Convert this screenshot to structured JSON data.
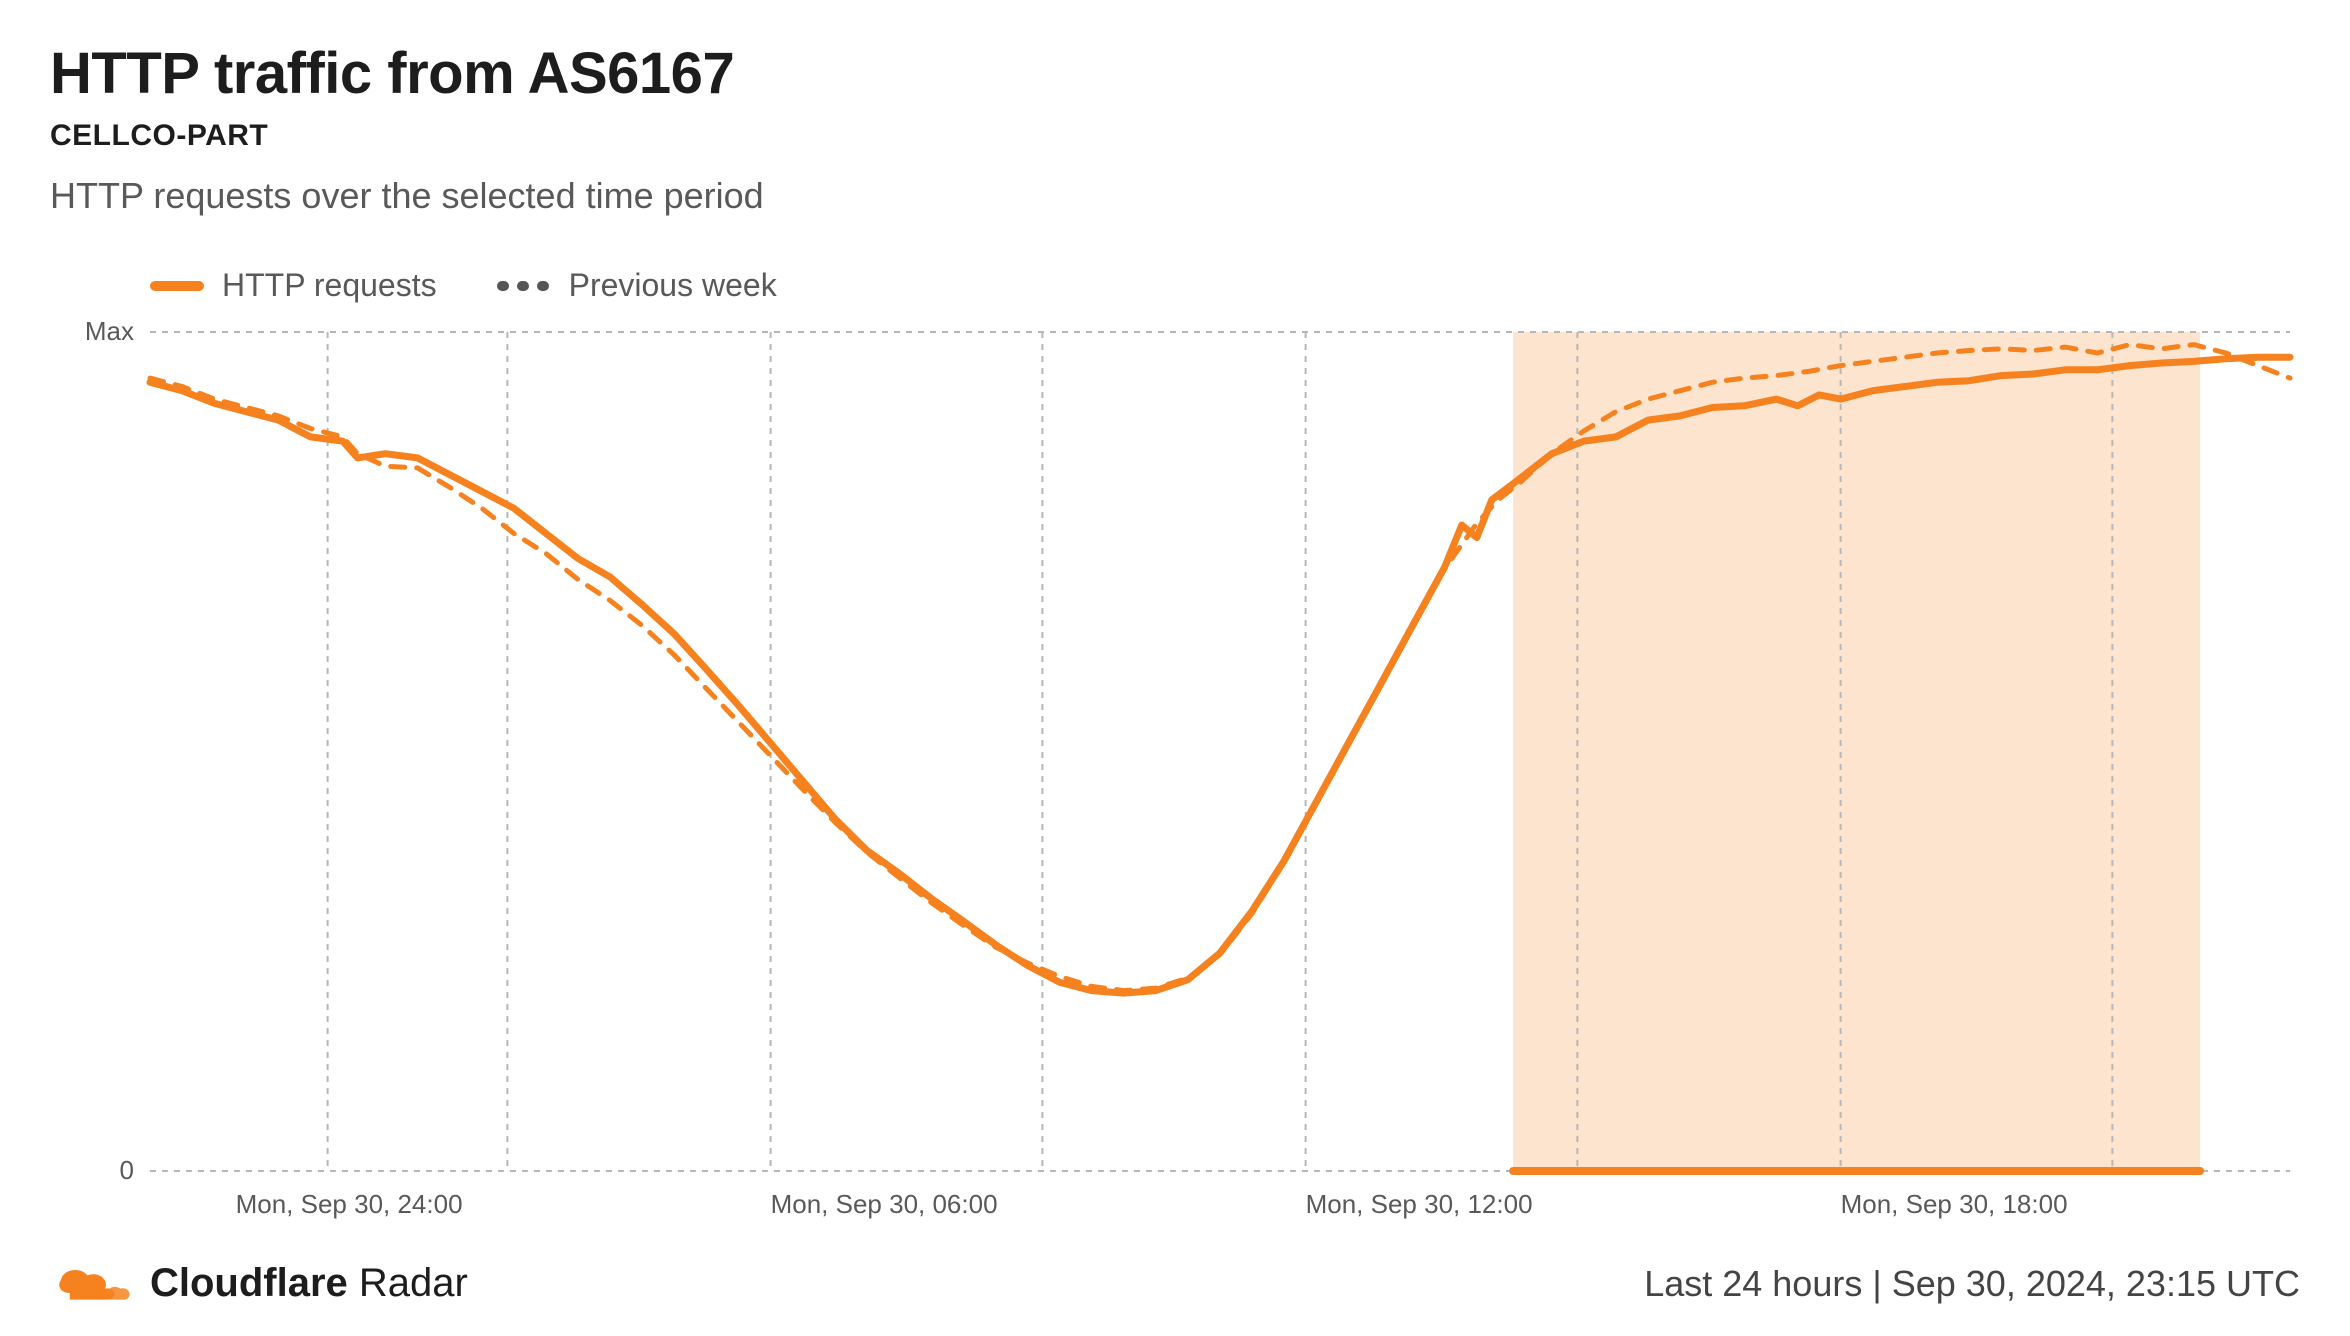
{
  "header": {
    "title": "HTTP traffic from AS6167",
    "subtitle": "CELLCO-PART",
    "description": "HTTP requests over the selected time period"
  },
  "legend": {
    "series1_label": "HTTP requests",
    "series2_label": "Previous week",
    "series1_color": "#f6821f",
    "series2_color": "#555555"
  },
  "chart": {
    "type": "line",
    "background_color": "#ffffff",
    "grid_color": "#b7b7b7",
    "axis_font_size": 26,
    "axis_font_color": "#595959",
    "y_axis": {
      "labels": [
        "Max",
        "0"
      ],
      "positions": [
        0,
        1
      ]
    },
    "x_axis": {
      "labels": [
        "Mon, Sep 30, 24:00",
        "Mon, Sep 30, 06:00",
        "Mon, Sep 30, 12:00",
        "Mon, Sep 30, 18:00"
      ],
      "positions": [
        0.04,
        0.29,
        0.54,
        0.79
      ]
    },
    "grid_vertical_positions": [
      0.083,
      0.167,
      0.29,
      0.417,
      0.54,
      0.667,
      0.79,
      0.917
    ],
    "highlight_band": {
      "start": 0.637,
      "end": 0.958,
      "fill_color": "#f6821f",
      "fill_opacity": 0.22,
      "baseline_width": 8
    },
    "series": [
      {
        "name": "HTTP requests",
        "color": "#f6821f",
        "line_width": 7,
        "dash": null,
        "points": [
          [
            0.0,
            0.94
          ],
          [
            0.015,
            0.93
          ],
          [
            0.03,
            0.915
          ],
          [
            0.045,
            0.905
          ],
          [
            0.06,
            0.895
          ],
          [
            0.075,
            0.875
          ],
          [
            0.09,
            0.87
          ],
          [
            0.097,
            0.85
          ],
          [
            0.11,
            0.855
          ],
          [
            0.125,
            0.85
          ],
          [
            0.14,
            0.83
          ],
          [
            0.155,
            0.81
          ],
          [
            0.17,
            0.79
          ],
          [
            0.185,
            0.76
          ],
          [
            0.2,
            0.73
          ],
          [
            0.215,
            0.708
          ],
          [
            0.23,
            0.675
          ],
          [
            0.245,
            0.64
          ],
          [
            0.26,
            0.598
          ],
          [
            0.275,
            0.555
          ],
          [
            0.29,
            0.51
          ],
          [
            0.305,
            0.465
          ],
          [
            0.32,
            0.42
          ],
          [
            0.335,
            0.382
          ],
          [
            0.35,
            0.355
          ],
          [
            0.365,
            0.325
          ],
          [
            0.38,
            0.298
          ],
          [
            0.395,
            0.27
          ],
          [
            0.41,
            0.245
          ],
          [
            0.425,
            0.225
          ],
          [
            0.44,
            0.215
          ],
          [
            0.455,
            0.212
          ],
          [
            0.47,
            0.215
          ],
          [
            0.485,
            0.228
          ],
          [
            0.5,
            0.26
          ],
          [
            0.515,
            0.31
          ],
          [
            0.53,
            0.37
          ],
          [
            0.545,
            0.44
          ],
          [
            0.56,
            0.51
          ],
          [
            0.575,
            0.58
          ],
          [
            0.59,
            0.65
          ],
          [
            0.605,
            0.72
          ],
          [
            0.613,
            0.77
          ],
          [
            0.62,
            0.755
          ],
          [
            0.627,
            0.8
          ],
          [
            0.64,
            0.825
          ],
          [
            0.655,
            0.855
          ],
          [
            0.67,
            0.87
          ],
          [
            0.685,
            0.875
          ],
          [
            0.7,
            0.895
          ],
          [
            0.715,
            0.9
          ],
          [
            0.73,
            0.91
          ],
          [
            0.745,
            0.912
          ],
          [
            0.76,
            0.92
          ],
          [
            0.77,
            0.912
          ],
          [
            0.78,
            0.925
          ],
          [
            0.79,
            0.92
          ],
          [
            0.805,
            0.93
          ],
          [
            0.82,
            0.935
          ],
          [
            0.835,
            0.94
          ],
          [
            0.85,
            0.942
          ],
          [
            0.865,
            0.948
          ],
          [
            0.88,
            0.95
          ],
          [
            0.895,
            0.955
          ],
          [
            0.91,
            0.955
          ],
          [
            0.925,
            0.96
          ],
          [
            0.94,
            0.963
          ],
          [
            0.955,
            0.965
          ],
          [
            0.97,
            0.968
          ],
          [
            0.985,
            0.97
          ],
          [
            1.0,
            0.97
          ]
        ]
      },
      {
        "name": "Previous week",
        "color": "#f6821f",
        "line_width": 5,
        "dash": "14 12",
        "points": [
          [
            0.0,
            0.945
          ],
          [
            0.015,
            0.935
          ],
          [
            0.03,
            0.92
          ],
          [
            0.045,
            0.91
          ],
          [
            0.06,
            0.9
          ],
          [
            0.075,
            0.885
          ],
          [
            0.09,
            0.875
          ],
          [
            0.097,
            0.855
          ],
          [
            0.11,
            0.84
          ],
          [
            0.125,
            0.838
          ],
          [
            0.14,
            0.815
          ],
          [
            0.155,
            0.79
          ],
          [
            0.17,
            0.76
          ],
          [
            0.185,
            0.736
          ],
          [
            0.2,
            0.705
          ],
          [
            0.215,
            0.68
          ],
          [
            0.23,
            0.65
          ],
          [
            0.245,
            0.615
          ],
          [
            0.26,
            0.575
          ],
          [
            0.275,
            0.535
          ],
          [
            0.29,
            0.495
          ],
          [
            0.305,
            0.455
          ],
          [
            0.32,
            0.416
          ],
          [
            0.335,
            0.38
          ],
          [
            0.35,
            0.35
          ],
          [
            0.365,
            0.32
          ],
          [
            0.38,
            0.293
          ],
          [
            0.395,
            0.267
          ],
          [
            0.41,
            0.248
          ],
          [
            0.425,
            0.232
          ],
          [
            0.44,
            0.22
          ],
          [
            0.455,
            0.215
          ],
          [
            0.47,
            0.218
          ],
          [
            0.485,
            0.23
          ],
          [
            0.5,
            0.258
          ],
          [
            0.515,
            0.307
          ],
          [
            0.53,
            0.368
          ],
          [
            0.545,
            0.438
          ],
          [
            0.56,
            0.508
          ],
          [
            0.575,
            0.582
          ],
          [
            0.59,
            0.652
          ],
          [
            0.605,
            0.718
          ],
          [
            0.62,
            0.772
          ],
          [
            0.63,
            0.8
          ],
          [
            0.64,
            0.82
          ],
          [
            0.655,
            0.855
          ],
          [
            0.67,
            0.882
          ],
          [
            0.685,
            0.905
          ],
          [
            0.7,
            0.92
          ],
          [
            0.715,
            0.93
          ],
          [
            0.73,
            0.94
          ],
          [
            0.745,
            0.945
          ],
          [
            0.76,
            0.948
          ],
          [
            0.775,
            0.953
          ],
          [
            0.79,
            0.96
          ],
          [
            0.805,
            0.965
          ],
          [
            0.82,
            0.97
          ],
          [
            0.835,
            0.975
          ],
          [
            0.85,
            0.978
          ],
          [
            0.865,
            0.98
          ],
          [
            0.88,
            0.978
          ],
          [
            0.895,
            0.982
          ],
          [
            0.91,
            0.975
          ],
          [
            0.925,
            0.985
          ],
          [
            0.94,
            0.98
          ],
          [
            0.955,
            0.985
          ],
          [
            0.97,
            0.975
          ],
          [
            0.985,
            0.96
          ],
          [
            1.0,
            0.945
          ]
        ]
      }
    ]
  },
  "footer": {
    "brand_bold": "Cloudflare",
    "brand_light": " Radar",
    "logo_color": "#f6821f",
    "timestamp_left": "Last 24 hours",
    "timestamp_right": "Sep 30, 2024, 23:15 UTC"
  }
}
